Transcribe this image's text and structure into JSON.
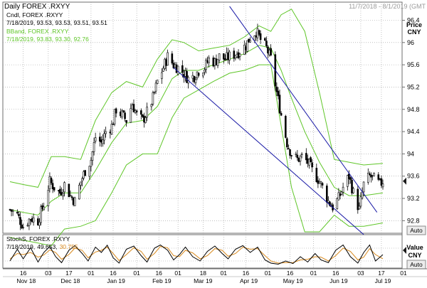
{
  "header": {
    "title": "Daily FOREX .RXYY",
    "date_range": "11/7/2018 - 8/1/2019 (GMT"
  },
  "main_legend": [
    {
      "text": "Cndl, FOREX .RXYY",
      "color": "#000000"
    },
    {
      "text": "7/18/2019, 93.53, 93.53, 93.51, 93.51",
      "color": "#000000"
    },
    {
      "text": "BBand, FOREX .RXYY",
      "color": "#5fc628"
    },
    {
      "text": "7/18/2019, 93.83, 93.30, 92.76",
      "color": "#5fc628"
    }
  ],
  "stoch_legend": {
    "name": "StochS, FOREX .RXYY",
    "date": "7/18/2019,",
    "k_value": "49.653,",
    "d_value": "30.755"
  },
  "price_axis": {
    "title_line1": "Price",
    "title_line2": "CNY",
    "ticks": [
      "96.4",
      "96",
      "95.6",
      "95.2",
      "94.8",
      "94.4",
      "94",
      "93.6",
      "93.2",
      "92.8"
    ],
    "auto_label": "Auto"
  },
  "stoch_axis": {
    "title_line1": "Value",
    "title_line2": "CNY",
    "auto_label": "Auto"
  },
  "x_axis": {
    "day_ticks": [
      "16",
      "03",
      "17",
      "01",
      "16",
      "01",
      "16",
      "01",
      "18",
      "01",
      "16",
      "01",
      "16",
      "01",
      "16",
      "03",
      "17",
      "01",
      "16",
      "01"
    ],
    "month_labels": [
      "Nov 18",
      "Dec 18",
      "Jan 19",
      "Feb 19",
      "Mar 19",
      "Apr 19",
      "May 19",
      "Jun 19",
      "Jul 19"
    ]
  },
  "colors": {
    "candle": "#000000",
    "bband": "#5fc628",
    "trendline": "#1a1aa6",
    "stoch_k": "#000000",
    "stoch_d": "#d98a1e",
    "grid": "#9a9a9a",
    "last_marker": "#1c1c1c"
  },
  "chart_data": {
    "type": "candlestick",
    "title": "Daily FOREX .RXYY",
    "ylabel": "Price CNY",
    "ylim": [
      92.6,
      96.7
    ],
    "x_start": "2018-11-07",
    "x_end": "2019-08-01",
    "last_close": 93.51,
    "close_path": [
      [
        "2018-11-07",
        93.0
      ],
      [
        "2018-11-12",
        92.9
      ],
      [
        "2018-11-16",
        92.7
      ],
      [
        "2018-11-21",
        92.85
      ],
      [
        "2018-11-26",
        92.8
      ],
      [
        "2018-11-30",
        93.1
      ],
      [
        "2018-12-04",
        93.5
      ],
      [
        "2018-12-07",
        93.4
      ],
      [
        "2018-12-11",
        93.3
      ],
      [
        "2018-12-14",
        93.45
      ],
      [
        "2018-12-18",
        93.25
      ],
      [
        "2018-12-21",
        93.15
      ],
      [
        "2018-12-25",
        93.5
      ],
      [
        "2018-12-28",
        93.7
      ],
      [
        "2019-01-01",
        93.9
      ],
      [
        "2019-01-04",
        94.3
      ],
      [
        "2019-01-08",
        94.2
      ],
      [
        "2019-01-11",
        94.4
      ],
      [
        "2019-01-15",
        94.5
      ],
      [
        "2019-01-18",
        94.8
      ],
      [
        "2019-01-22",
        94.7
      ],
      [
        "2019-01-25",
        94.6
      ],
      [
        "2019-01-29",
        94.9
      ],
      [
        "2019-02-01",
        94.7
      ],
      [
        "2019-02-05",
        94.6
      ],
      [
        "2019-02-08",
        94.75
      ],
      [
        "2019-02-12",
        95.0
      ],
      [
        "2019-02-15",
        95.3
      ],
      [
        "2019-02-19",
        95.55
      ],
      [
        "2019-02-22",
        95.75
      ],
      [
        "2019-02-26",
        95.6
      ],
      [
        "2019-03-01",
        95.55
      ],
      [
        "2019-03-05",
        95.45
      ],
      [
        "2019-03-08",
        95.35
      ],
      [
        "2019-03-12",
        95.4
      ],
      [
        "2019-03-15",
        95.5
      ],
      [
        "2019-03-19",
        95.55
      ],
      [
        "2019-03-22",
        95.7
      ],
      [
        "2019-03-26",
        95.65
      ],
      [
        "2019-03-29",
        95.75
      ],
      [
        "2019-04-02",
        95.7
      ],
      [
        "2019-04-05",
        95.75
      ],
      [
        "2019-04-09",
        95.8
      ],
      [
        "2019-04-12",
        95.85
      ],
      [
        "2019-04-16",
        95.95
      ],
      [
        "2019-04-19",
        96.1
      ],
      [
        "2019-04-23",
        96.2
      ],
      [
        "2019-04-26",
        96.05
      ],
      [
        "2019-04-30",
        95.9
      ],
      [
        "2019-05-03",
        95.7
      ],
      [
        "2019-05-07",
        95.1
      ],
      [
        "2019-05-10",
        94.7
      ],
      [
        "2019-05-14",
        94.2
      ],
      [
        "2019-05-17",
        94.0
      ],
      [
        "2019-05-21",
        93.9
      ],
      [
        "2019-05-24",
        93.95
      ],
      [
        "2019-05-28",
        93.85
      ],
      [
        "2019-05-31",
        93.7
      ],
      [
        "2019-06-04",
        93.55
      ],
      [
        "2019-06-07",
        93.4
      ],
      [
        "2019-06-11",
        93.15
      ],
      [
        "2019-06-14",
        93.05
      ],
      [
        "2019-06-18",
        93.2
      ],
      [
        "2019-06-21",
        93.4
      ],
      [
        "2019-06-25",
        93.6
      ],
      [
        "2019-06-28",
        93.3
      ],
      [
        "2019-07-02",
        93.0
      ],
      [
        "2019-07-05",
        93.45
      ],
      [
        "2019-07-09",
        93.6
      ],
      [
        "2019-07-12",
        93.55
      ],
      [
        "2019-07-16",
        93.45
      ],
      [
        "2019-07-18",
        93.51
      ]
    ],
    "bollinger": {
      "upper": [
        [
          "2018-11-07",
          93.5
        ],
        [
          "2018-11-16",
          93.45
        ],
        [
          "2018-11-26",
          93.4
        ],
        [
          "2018-12-05",
          93.95
        ],
        [
          "2018-12-14",
          93.95
        ],
        [
          "2018-12-25",
          93.9
        ],
        [
          "2019-01-04",
          94.6
        ],
        [
          "2019-01-15",
          95.1
        ],
        [
          "2019-01-25",
          95.3
        ],
        [
          "2019-02-05",
          95.2
        ],
        [
          "2019-02-15",
          95.7
        ],
        [
          "2019-02-25",
          96.05
        ],
        [
          "2019-03-05",
          96.0
        ],
        [
          "2019-03-15",
          95.85
        ],
        [
          "2019-03-25",
          95.9
        ],
        [
          "2019-04-05",
          95.95
        ],
        [
          "2019-04-15",
          96.1
        ],
        [
          "2019-04-25",
          96.3
        ],
        [
          "2019-05-03",
          96.2
        ],
        [
          "2019-05-10",
          96.5
        ],
        [
          "2019-05-17",
          96.6
        ],
        [
          "2019-05-26",
          96.2
        ],
        [
          "2019-06-05",
          95.1
        ],
        [
          "2019-06-15",
          93.9
        ],
        [
          "2019-06-25",
          93.85
        ],
        [
          "2019-07-05",
          93.8
        ],
        [
          "2019-07-18",
          93.83
        ]
      ],
      "middle": [
        [
          "2018-11-07",
          93.0
        ],
        [
          "2018-11-16",
          92.95
        ],
        [
          "2018-11-26",
          92.9
        ],
        [
          "2018-12-05",
          93.15
        ],
        [
          "2018-12-14",
          93.3
        ],
        [
          "2018-12-25",
          93.3
        ],
        [
          "2019-01-04",
          93.7
        ],
        [
          "2019-01-15",
          94.2
        ],
        [
          "2019-01-25",
          94.55
        ],
        [
          "2019-02-05",
          94.6
        ],
        [
          "2019-02-15",
          94.85
        ],
        [
          "2019-02-25",
          95.35
        ],
        [
          "2019-03-05",
          95.5
        ],
        [
          "2019-03-15",
          95.5
        ],
        [
          "2019-03-25",
          95.6
        ],
        [
          "2019-04-05",
          95.7
        ],
        [
          "2019-04-15",
          95.8
        ],
        [
          "2019-04-25",
          95.95
        ],
        [
          "2019-05-03",
          95.9
        ],
        [
          "2019-05-10",
          95.5
        ],
        [
          "2019-05-17",
          95.0
        ],
        [
          "2019-05-26",
          94.4
        ],
        [
          "2019-06-05",
          93.85
        ],
        [
          "2019-06-15",
          93.4
        ],
        [
          "2019-06-25",
          93.25
        ],
        [
          "2019-07-05",
          93.25
        ],
        [
          "2019-07-18",
          93.3
        ]
      ],
      "lower": [
        [
          "2018-11-07",
          92.5
        ],
        [
          "2018-11-16",
          92.45
        ],
        [
          "2018-11-26",
          92.4
        ],
        [
          "2018-12-05",
          92.35
        ],
        [
          "2018-12-14",
          92.65
        ],
        [
          "2018-12-25",
          92.7
        ],
        [
          "2019-01-04",
          92.8
        ],
        [
          "2019-01-15",
          93.3
        ],
        [
          "2019-01-25",
          93.8
        ],
        [
          "2019-02-05",
          94.0
        ],
        [
          "2019-02-15",
          94.0
        ],
        [
          "2019-02-25",
          94.65
        ],
        [
          "2019-03-05",
          95.0
        ],
        [
          "2019-03-15",
          95.15
        ],
        [
          "2019-03-25",
          95.3
        ],
        [
          "2019-04-05",
          95.45
        ],
        [
          "2019-04-15",
          95.5
        ],
        [
          "2019-04-25",
          95.6
        ],
        [
          "2019-05-03",
          95.6
        ],
        [
          "2019-05-10",
          94.5
        ],
        [
          "2019-05-17",
          93.4
        ],
        [
          "2019-05-26",
          92.6
        ],
        [
          "2019-06-05",
          92.6
        ],
        [
          "2019-06-15",
          92.9
        ],
        [
          "2019-06-25",
          92.7
        ],
        [
          "2019-07-05",
          92.7
        ],
        [
          "2019-07-18",
          92.76
        ]
      ]
    },
    "trendlines": [
      {
        "from": [
          "2019-02-26",
          95.55
        ],
        "to": [
          "2019-07-05",
          92.55
        ]
      },
      {
        "from": [
          "2019-04-05",
          96.65
        ],
        "to": [
          "2019-07-14",
          92.95
        ]
      }
    ],
    "stochastic": {
      "ylim": [
        0,
        100
      ],
      "last_k": 49.653,
      "last_d": 30.755,
      "k_path": [
        [
          "2018-11-07",
          20
        ],
        [
          "2018-11-12",
          75
        ],
        [
          "2018-11-16",
          30
        ],
        [
          "2018-11-21",
          82
        ],
        [
          "2018-11-26",
          15
        ],
        [
          "2018-11-30",
          60
        ],
        [
          "2018-12-04",
          88
        ],
        [
          "2018-12-08",
          40
        ],
        [
          "2018-12-12",
          12
        ],
        [
          "2018-12-17",
          70
        ],
        [
          "2018-12-21",
          92
        ],
        [
          "2018-12-26",
          55
        ],
        [
          "2018-12-30",
          20
        ],
        [
          "2019-01-04",
          85
        ],
        [
          "2019-01-08",
          60
        ],
        [
          "2019-01-12",
          94
        ],
        [
          "2019-01-16",
          35
        ],
        [
          "2019-01-20",
          10
        ],
        [
          "2019-01-25",
          75
        ],
        [
          "2019-01-30",
          90
        ],
        [
          "2019-02-04",
          45
        ],
        [
          "2019-02-08",
          15
        ],
        [
          "2019-02-13",
          80
        ],
        [
          "2019-02-17",
          95
        ],
        [
          "2019-02-22",
          70
        ],
        [
          "2019-02-26",
          25
        ],
        [
          "2019-03-02",
          50
        ],
        [
          "2019-03-06",
          85
        ],
        [
          "2019-03-11",
          40
        ],
        [
          "2019-03-16",
          20
        ],
        [
          "2019-03-21",
          65
        ],
        [
          "2019-03-26",
          90
        ],
        [
          "2019-03-31",
          55
        ],
        [
          "2019-04-04",
          30
        ],
        [
          "2019-04-09",
          75
        ],
        [
          "2019-04-14",
          92
        ],
        [
          "2019-04-19",
          60
        ],
        [
          "2019-04-24",
          85
        ],
        [
          "2019-04-29",
          25
        ],
        [
          "2019-05-03",
          10
        ],
        [
          "2019-05-08",
          5
        ],
        [
          "2019-05-13",
          20
        ],
        [
          "2019-05-18",
          8
        ],
        [
          "2019-05-23",
          40
        ],
        [
          "2019-05-28",
          15
        ],
        [
          "2019-06-02",
          55
        ],
        [
          "2019-06-06",
          25
        ],
        [
          "2019-06-11",
          12
        ],
        [
          "2019-06-16",
          70
        ],
        [
          "2019-06-21",
          95
        ],
        [
          "2019-06-26",
          40
        ],
        [
          "2019-07-01",
          10
        ],
        [
          "2019-07-05",
          60
        ],
        [
          "2019-07-09",
          95
        ],
        [
          "2019-07-13",
          20
        ],
        [
          "2019-07-18",
          49.653
        ]
      ],
      "d_path": [
        [
          "2018-11-07",
          30
        ],
        [
          "2018-11-12",
          55
        ],
        [
          "2018-11-16",
          50
        ],
        [
          "2018-11-21",
          60
        ],
        [
          "2018-11-26",
          38
        ],
        [
          "2018-11-30",
          48
        ],
        [
          "2018-12-04",
          72
        ],
        [
          "2018-12-08",
          60
        ],
        [
          "2018-12-12",
          28
        ],
        [
          "2018-12-17",
          50
        ],
        [
          "2018-12-21",
          80
        ],
        [
          "2018-12-26",
          70
        ],
        [
          "2018-12-30",
          35
        ],
        [
          "2019-01-04",
          62
        ],
        [
          "2019-01-08",
          70
        ],
        [
          "2019-01-12",
          85
        ],
        [
          "2019-01-16",
          55
        ],
        [
          "2019-01-20",
          22
        ],
        [
          "2019-01-25",
          50
        ],
        [
          "2019-01-30",
          82
        ],
        [
          "2019-02-04",
          65
        ],
        [
          "2019-02-08",
          28
        ],
        [
          "2019-02-13",
          55
        ],
        [
          "2019-02-17",
          88
        ],
        [
          "2019-02-22",
          82
        ],
        [
          "2019-02-26",
          45
        ],
        [
          "2019-03-02",
          40
        ],
        [
          "2019-03-06",
          70
        ],
        [
          "2019-03-11",
          58
        ],
        [
          "2019-03-16",
          30
        ],
        [
          "2019-03-21",
          45
        ],
        [
          "2019-03-26",
          78
        ],
        [
          "2019-03-31",
          70
        ],
        [
          "2019-04-04",
          42
        ],
        [
          "2019-04-09",
          55
        ],
        [
          "2019-04-14",
          85
        ],
        [
          "2019-04-19",
          75
        ],
        [
          "2019-04-24",
          78
        ],
        [
          "2019-04-29",
          45
        ],
        [
          "2019-05-03",
          20
        ],
        [
          "2019-05-08",
          10
        ],
        [
          "2019-05-13",
          12
        ],
        [
          "2019-05-18",
          12
        ],
        [
          "2019-05-23",
          25
        ],
        [
          "2019-05-28",
          28
        ],
        [
          "2019-06-02",
          40
        ],
        [
          "2019-06-06",
          38
        ],
        [
          "2019-06-11",
          20
        ],
        [
          "2019-06-16",
          45
        ],
        [
          "2019-06-21",
          80
        ],
        [
          "2019-06-26",
          65
        ],
        [
          "2019-07-01",
          25
        ],
        [
          "2019-07-05",
          38
        ],
        [
          "2019-07-09",
          78
        ],
        [
          "2019-07-13",
          50
        ],
        [
          "2019-07-18",
          30.755
        ]
      ]
    }
  }
}
